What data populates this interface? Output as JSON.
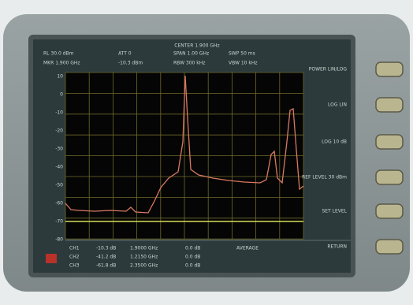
{
  "header": {
    "title": "CENTER 1.900 GHz",
    "line1": [
      "RL  30.0 dBm",
      "ATT 0",
      "SPAN 1.00 GHz",
      "SWP 50 ms"
    ],
    "line2": [
      "MKR 1.900 GHz",
      "-10.3 dBm",
      "RBW 300 kHz",
      "VBW 10 kHz"
    ]
  },
  "y_labels": [
    "10",
    "0",
    "-10",
    "-20",
    "-30",
    "-40",
    "-50",
    "-60",
    "-70",
    "-80"
  ],
  "softkeys": [
    "POWER LIN/LOG",
    "LOG LIN",
    "LOG 10 dB",
    "REF LEVEL 30 dBm",
    "SET LEVEL",
    "RETURN"
  ],
  "table": {
    "rows": [
      [
        "CH1",
        "-10.3 dB",
        "1.9000 GHz",
        "0.0 dB",
        "AVERAGE"
      ],
      [
        "CH2",
        "-41.2 dB",
        "1.2150 GHz",
        "0.0 dB",
        ""
      ],
      [
        "CH3",
        "-61.8 dB",
        "2.3500 GHz",
        "0.0 dB",
        ""
      ]
    ]
  }
}
